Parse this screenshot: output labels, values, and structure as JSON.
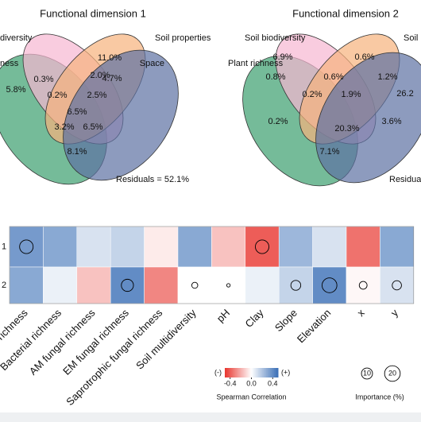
{
  "chart_data": [
    {
      "type": "venn",
      "title": "Functional dimension 1",
      "sets": [
        "diversity",
        "Soil properties",
        "ness",
        "Space"
      ],
      "values": [
        0.3,
        2.0,
        11.0,
        5.8,
        0.2,
        2.5,
        4.7,
        6.5,
        3.2,
        6.5,
        8.1
      ],
      "value_labels": [
        "0.3%",
        "2.0%",
        "11.0%",
        "5.8%",
        "0.2%",
        "2.5%",
        "4.7%",
        "6.5%",
        "3.2%",
        "6.5%",
        "8.1%"
      ],
      "residuals_label": "Residuals = 52.1%"
    },
    {
      "type": "venn",
      "title": "Functional dimension 2",
      "sets": [
        "Soil biodiversity",
        "Soil",
        "Plant richness"
      ],
      "values": [
        6.9,
        0.6,
        0.8,
        0.6,
        1.2,
        0.2,
        1.9,
        26.2,
        0.2,
        20.3,
        3.6,
        7.1
      ],
      "value_labels": [
        "6.9%",
        "0.6%",
        "0.8%",
        "0.6%",
        "1.2%",
        "0.2%",
        "1.9%",
        "26.2",
        "0.2%",
        "20.3%",
        "3.6%",
        "7.1%"
      ],
      "residuals_label": "Residua"
    },
    {
      "type": "heatmap",
      "categories": [
        "richness",
        "Bacterial richness",
        "AM fungal richness",
        "EM fungal richness",
        "Saprotrophic fungal richness",
        "Soil multidiversity",
        "pH",
        "Clay",
        "Slope",
        "Elevation",
        "x",
        "y"
      ],
      "series": [
        {
          "name": "1",
          "values": [
            0.35,
            0.3,
            0.1,
            0.15,
            -0.05,
            0.3,
            -0.15,
            -0.4,
            0.25,
            0.1,
            -0.35,
            0.3
          ],
          "importance": [
            15,
            null,
            null,
            null,
            null,
            null,
            null,
            15,
            null,
            null,
            null,
            null
          ]
        },
        {
          "name": "2",
          "values": [
            0.3,
            0.05,
            -0.15,
            0.4,
            -0.3,
            0.0,
            0.0,
            0.05,
            0.15,
            0.4,
            -0.02,
            0.1
          ],
          "importance": [
            null,
            null,
            null,
            12,
            null,
            3,
            1,
            null,
            8,
            18,
            5,
            7
          ]
        }
      ],
      "clim": [
        -0.5,
        0.5
      ],
      "cticks": [
        -0.4,
        {
          "value": 0.0,
          "label": "0.0"
        },
        0.4
      ],
      "cbar_neg": "(-)",
      "cbar_pos": "(+)",
      "color_label": "Spearman Correlation",
      "size_ticks": [
        10,
        20
      ],
      "size_label": "Importance (%)"
    }
  ]
}
